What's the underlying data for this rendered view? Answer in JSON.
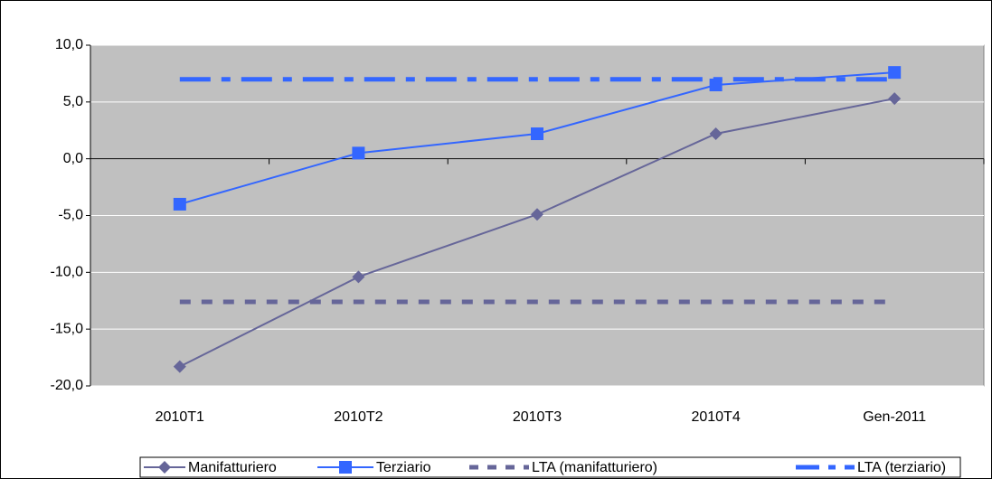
{
  "chart_data": {
    "type": "line",
    "categories": [
      "2010T1",
      "2010T2",
      "2010T3",
      "2010T4",
      "Gen-2011"
    ],
    "series": [
      {
        "name": "Manifatturiero",
        "color": "#666699",
        "marker": "diamond",
        "line_style": "solid",
        "values": [
          -18.3,
          -10.4,
          -4.9,
          2.2,
          5.3
        ]
      },
      {
        "name": "Terziario",
        "color": "#3366ff",
        "marker": "square",
        "line_style": "solid",
        "values": [
          -4.0,
          0.5,
          2.2,
          6.5,
          7.6
        ]
      },
      {
        "name": "LTA (manifatturiero)",
        "color": "#666699",
        "marker": "none",
        "line_style": "dashed",
        "values": [
          -12.6,
          -12.6,
          -12.6,
          -12.6,
          -12.6
        ]
      },
      {
        "name": "LTA (terziario)",
        "color": "#3366ff",
        "marker": "none",
        "line_style": "dash-dot",
        "values": [
          7.0,
          7.0,
          7.0,
          7.0,
          7.0
        ]
      }
    ],
    "ylim": [
      -20,
      10
    ],
    "yticks": [
      {
        "value": -20,
        "label": "-20,0"
      },
      {
        "value": -15,
        "label": "-15,0"
      },
      {
        "value": -10,
        "label": "-10,0"
      },
      {
        "value": -5,
        "label": "-5,0"
      },
      {
        "value": 0,
        "label": "0,0"
      },
      {
        "value": 5,
        "label": "5,0"
      },
      {
        "value": 10,
        "label": "10,0"
      }
    ],
    "grid": true,
    "background": "#c0c0c0",
    "legend": "bottom"
  }
}
